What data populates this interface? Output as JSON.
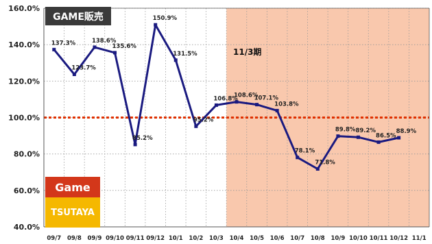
{
  "chart_data": {
    "type": "line",
    "title": "GAME販売",
    "annotation": "11/3期",
    "reference_value": 100.0,
    "categories": [
      "09/7",
      "09/8",
      "09/9",
      "09/10",
      "09/11",
      "09/12",
      "10/1",
      "10/2",
      "10/3",
      "10/4",
      "10/5",
      "10/6",
      "10/7",
      "10/8",
      "10/9",
      "10/10",
      "10/11",
      "10/12",
      "11/1"
    ],
    "series": [
      {
        "values": [
          137.3,
          123.7,
          138.6,
          135.6,
          85.2,
          150.9,
          131.5,
          95.2,
          106.8,
          108.6,
          107.1,
          103.8,
          78.1,
          71.8,
          89.8,
          89.2,
          86.5,
          88.9,
          null
        ]
      }
    ],
    "data_labels": [
      "137.3%",
      "123.7%",
      "138.6%",
      "135.6%",
      "85.2%",
      "150.9%",
      "131.5%",
      "95.2%",
      "106.8%",
      "108.6%",
      "107.1%",
      "103.8%",
      "78.1%",
      "71.8%",
      "89.8%",
      "89.2%",
      "86.5%",
      "88.9%"
    ],
    "y_tick_labels": [
      "160.0%",
      "140.0%",
      "120.0%",
      "100.0%",
      "80.0%",
      "60.0%",
      "40.0%"
    ],
    "y_ticks": [
      160,
      140,
      120,
      100,
      80,
      60,
      40
    ],
    "ylim": [
      40,
      160
    ],
    "highlight_from_category": "10/4",
    "grid": true,
    "colors": {
      "line": "#1a1a80",
      "reference": "#e03000",
      "highlight": "#f9c8ad",
      "grid": "#999999"
    }
  },
  "logos": {
    "game": "Game",
    "tsutaya": "TSUTAYA"
  }
}
